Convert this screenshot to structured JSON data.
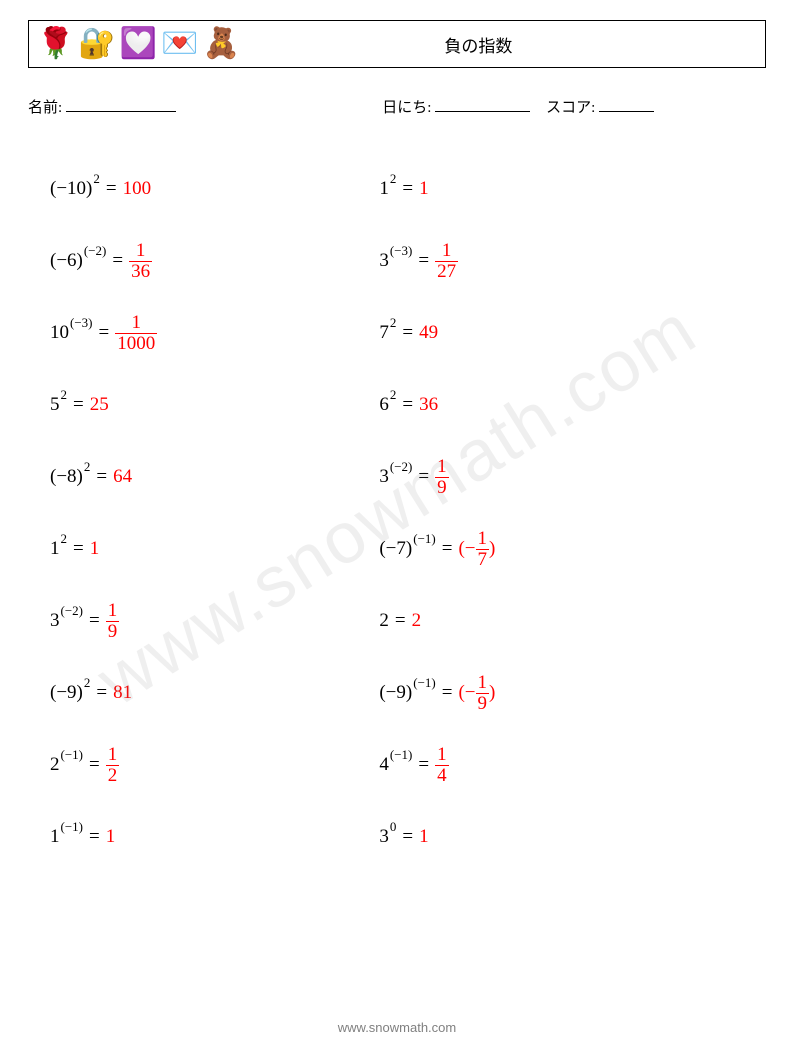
{
  "header": {
    "emojis": [
      "🌹",
      "🔐",
      "💟",
      "💌",
      "🧸"
    ],
    "title": "負の指数"
  },
  "meta": {
    "name_label": "名前:",
    "date_label": "日にち:",
    "score_label": "スコア:",
    "name_line_width": 110,
    "date_line_width": 95,
    "score_line_width": 55
  },
  "colors": {
    "answer": "#ff0000",
    "text": "#000000",
    "footer": "#808080",
    "watermark": "rgba(120,120,120,0.12)"
  },
  "left": [
    {
      "base": "(−10)",
      "exp": "2",
      "answer_type": "plain",
      "answer": "100"
    },
    {
      "base": "(−6)",
      "exp": "(−2)",
      "answer_type": "frac",
      "num": "1",
      "den": "36"
    },
    {
      "base": "10",
      "exp": "(−3)",
      "answer_type": "frac",
      "num": "1",
      "den": "1000"
    },
    {
      "base": "5",
      "exp": "2",
      "answer_type": "plain",
      "answer": "25"
    },
    {
      "base": "(−8)",
      "exp": "2",
      "answer_type": "plain",
      "answer": "64"
    },
    {
      "base": "1",
      "exp": "2",
      "answer_type": "plain",
      "answer": "1"
    },
    {
      "base": "3",
      "exp": "(−2)",
      "answer_type": "frac",
      "num": "1",
      "den": "9"
    },
    {
      "base": "(−9)",
      "exp": "2",
      "answer_type": "plain",
      "answer": "81"
    },
    {
      "base": "2",
      "exp": "(−1)",
      "answer_type": "frac",
      "num": "1",
      "den": "2"
    },
    {
      "base": "1",
      "exp": "(−1)",
      "answer_type": "plain",
      "answer": "1"
    }
  ],
  "right": [
    {
      "base": "1",
      "exp": "2",
      "answer_type": "plain",
      "answer": "1"
    },
    {
      "base": "3",
      "exp": "(−3)",
      "answer_type": "frac",
      "num": "1",
      "den": "27"
    },
    {
      "base": "7",
      "exp": "2",
      "answer_type": "plain",
      "answer": "49"
    },
    {
      "base": "6",
      "exp": "2",
      "answer_type": "plain",
      "answer": "36"
    },
    {
      "base": "3",
      "exp": "(−2)",
      "answer_type": "frac",
      "num": "1",
      "den": "9"
    },
    {
      "base": "(−7)",
      "exp": "(−1)",
      "answer_type": "negfrac",
      "num": "1",
      "den": "7"
    },
    {
      "base": "2",
      "exp": "",
      "answer_type": "plain",
      "answer": "2"
    },
    {
      "base": "(−9)",
      "exp": "(−1)",
      "answer_type": "negfrac",
      "num": "1",
      "den": "9"
    },
    {
      "base": "4",
      "exp": "(−1)",
      "answer_type": "frac",
      "num": "1",
      "den": "4"
    },
    {
      "base": "3",
      "exp": "0",
      "answer_type": "plain",
      "answer": "1"
    }
  ],
  "footer": "www.snowmath.com",
  "watermark": "www.snowmath.com"
}
